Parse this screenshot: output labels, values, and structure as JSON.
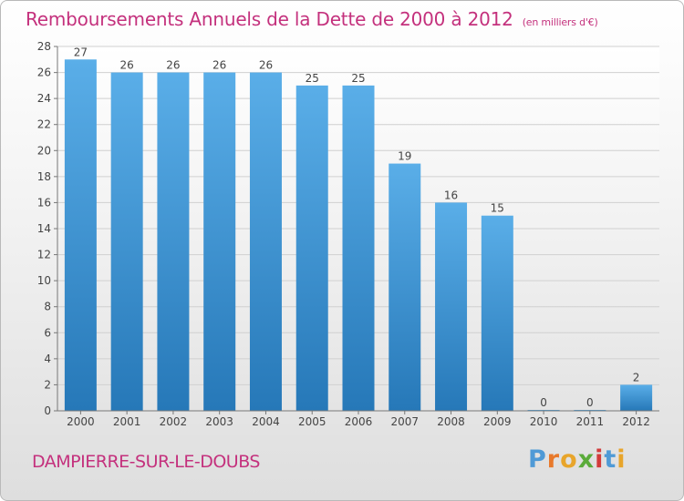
{
  "header": {
    "title": "Remboursements Annuels de la Dette de 2000 à 2012",
    "subtitle": "(en milliers d'€)"
  },
  "footer": {
    "commune": "DAMPIERRE-SUR-LE-DOUBS",
    "logo": "Proxiti",
    "logo_colors": [
      "#4f9ad6",
      "#e8792b",
      "#e8a52b",
      "#5aab3a",
      "#d23b3b",
      "#4f9ad6",
      "#e8a52b"
    ]
  },
  "chart_data": {
    "type": "bar",
    "categories": [
      "2000",
      "2001",
      "2002",
      "2003",
      "2004",
      "2005",
      "2006",
      "2007",
      "2008",
      "2009",
      "2010",
      "2011",
      "2012"
    ],
    "values": [
      27,
      26,
      26,
      26,
      26,
      25,
      25,
      19,
      16,
      15,
      0,
      0,
      2
    ],
    "value_labels": [
      "27",
      "26",
      "26",
      "26",
      "26",
      "25",
      "25",
      "19",
      "16",
      "15",
      "0",
      "0",
      "2"
    ],
    "title": "Remboursements Annuels de la Dette de 2000 à 2012",
    "xlabel": "",
    "ylabel": "",
    "ylim": [
      0,
      28
    ],
    "yticks": [
      0,
      2,
      4,
      6,
      8,
      10,
      12,
      14,
      16,
      18,
      20,
      22,
      24,
      26,
      28
    ],
    "grid": true,
    "bar_color_top": "#5aaee8",
    "bar_color_bottom": "#2678b8"
  }
}
